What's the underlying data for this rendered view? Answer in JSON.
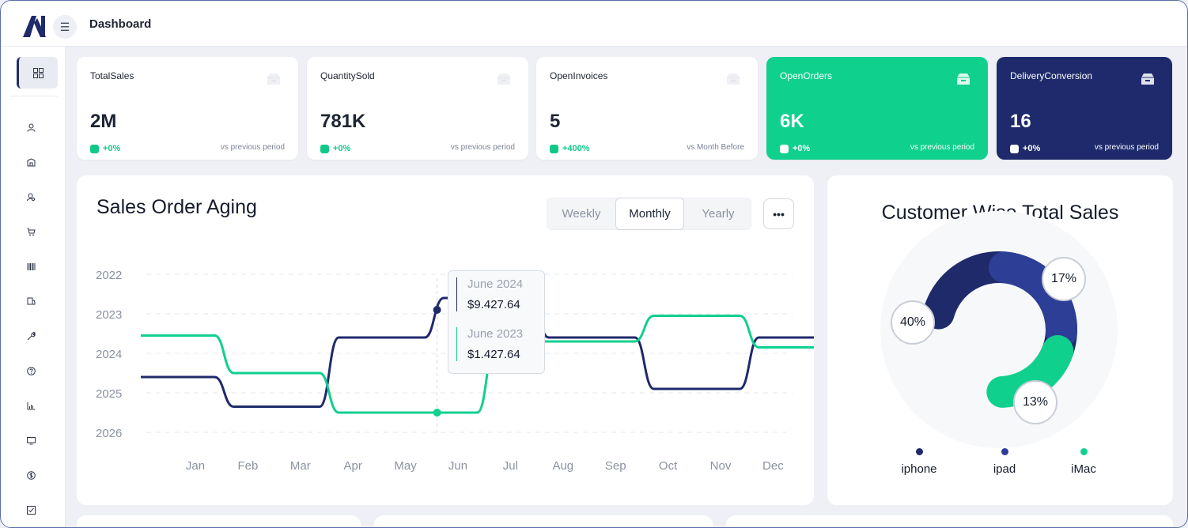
{
  "header": {
    "title": "Dashboard",
    "menu_icon": "hamburger-icon"
  },
  "sidebar": {
    "items": [
      {
        "icon": "grid-icon",
        "active": true
      },
      {
        "icon": "user-icon"
      },
      {
        "icon": "building-icon"
      },
      {
        "icon": "user-search-icon"
      },
      {
        "icon": "cart-icon"
      },
      {
        "icon": "barcode-icon"
      },
      {
        "icon": "truck-icon"
      },
      {
        "icon": "wrench-icon"
      },
      {
        "icon": "help-icon"
      },
      {
        "icon": "bar-chart-icon"
      },
      {
        "icon": "monitor-icon"
      },
      {
        "icon": "dollar-icon"
      },
      {
        "icon": "checkbox-icon"
      }
    ]
  },
  "kpis": [
    {
      "title": "TotalSales",
      "value": "2M",
      "change": "+0%",
      "period": "vs previous period"
    },
    {
      "title": "QuantitySold",
      "value": "781K",
      "change": "+0%",
      "period": "vs previous period"
    },
    {
      "title": "OpenInvoices",
      "value": "5",
      "change": "+400%",
      "period": "vs Month Before"
    },
    {
      "title": "OpenOrders",
      "value": "6K",
      "change": "+0%",
      "period": "vs previous period"
    },
    {
      "title": "DeliveryConversion",
      "value": "16",
      "change": "+0%",
      "period": "vs previous period"
    }
  ],
  "aging": {
    "title": "Sales Order Aging",
    "tabs": [
      "Weekly",
      "Monthly",
      "Yearly"
    ],
    "active_tab": "Monthly",
    "more_label": "•••",
    "tooltip": {
      "series1_label": "June 2024",
      "series1_value": "$9.427.64",
      "series2_label": "June 2023",
      "series2_value": "$1.427.64"
    }
  },
  "chart_data": [
    {
      "type": "line",
      "title": "Sales Order Aging",
      "categories": [
        "Jan",
        "Feb",
        "Mar",
        "Apr",
        "May",
        "Jun",
        "Jul",
        "Aug",
        "Sep",
        "Oct",
        "Nov",
        "Dec"
      ],
      "y_tick_labels": [
        "2022",
        "2023",
        "2024",
        "2025",
        "2026"
      ],
      "ylim": [
        0,
        4
      ],
      "grid": true,
      "series": [
        {
          "values": [
            2.6,
            3.35,
            3.35,
            1.6,
            1.6,
            0.6,
            0.6,
            1.6,
            1.6,
            2.9,
            2.9,
            1.6
          ],
          "color": "#1f2a6b"
        },
        {
          "values": [
            1.55,
            2.5,
            2.5,
            3.5,
            3.5,
            3.5,
            1.7,
            1.7,
            1.7,
            1.05,
            1.05,
            1.85
          ],
          "color": "#10d08e"
        }
      ],
      "highlight_category": "May"
    },
    {
      "type": "pie",
      "title": "Customer Wise Total Sales",
      "labels": [
        "iphone",
        "ipad",
        "iMac"
      ],
      "values": [
        40,
        17,
        13
      ],
      "colors": [
        "#1f2a6b",
        "#2c3e96",
        "#10d08e"
      ],
      "percent_labels": [
        "40%",
        "17%",
        "13%"
      ]
    }
  ],
  "donut": {
    "title": "Customer Wise Total Sales",
    "legend": [
      "iphone",
      "ipad",
      "iMac"
    ]
  }
}
